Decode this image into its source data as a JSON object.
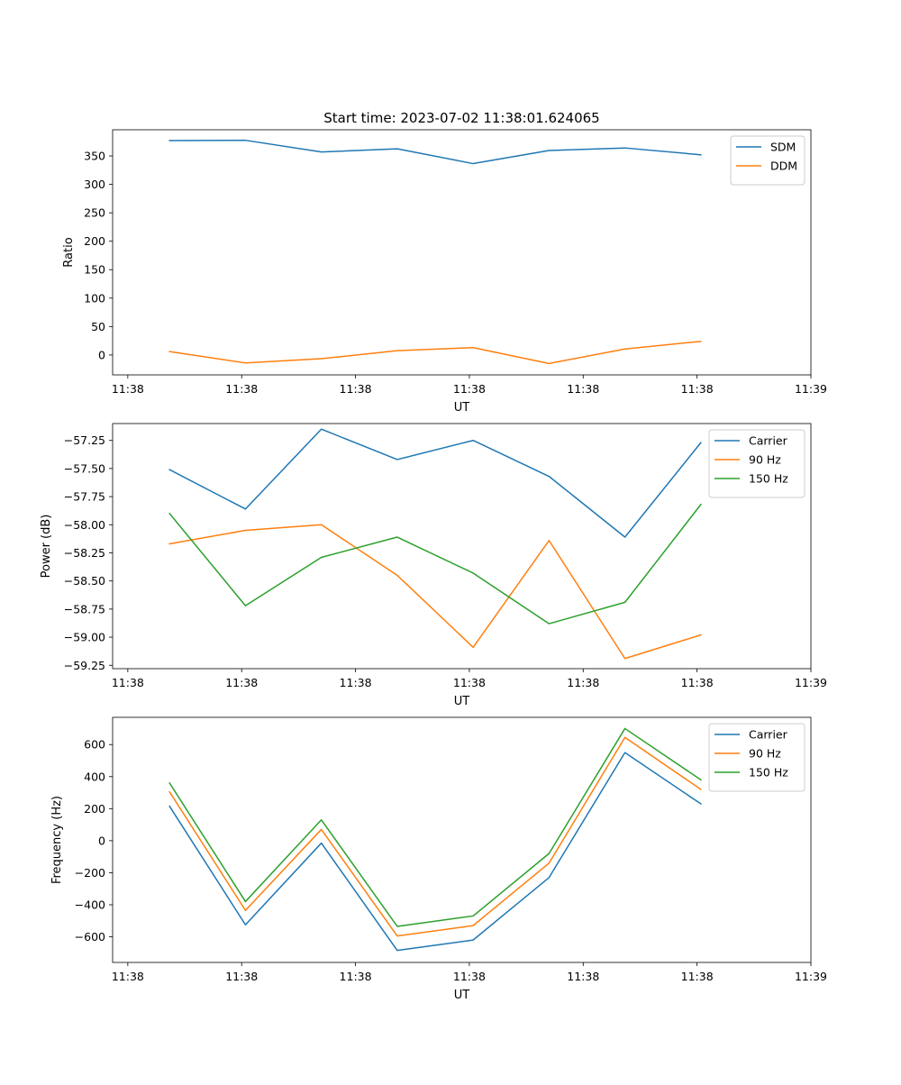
{
  "figure_title": "Start time: 2023-07-02 11:38:01.624065",
  "colors": {
    "blue": "#1f77b4",
    "orange": "#ff7f0e",
    "green": "#2ca02c"
  },
  "chart_data": [
    {
      "type": "line",
      "title": "Start time: 2023-07-02 11:38:01.624065",
      "xlabel": "UT",
      "ylabel": "Ratio",
      "legend": "top-right",
      "x": [
        1,
        2,
        3,
        4,
        5,
        6,
        7,
        8
      ],
      "xlim": [
        0.25,
        9.45
      ],
      "xticks": [
        0.45,
        1.95,
        3.45,
        4.95,
        6.45,
        7.95,
        9.45
      ],
      "xticklabels": [
        "11:38",
        "11:38",
        "11:38",
        "11:38",
        "11:38",
        "11:38",
        "11:39"
      ],
      "ylim": [
        -35,
        396
      ],
      "yticks": [
        0,
        50,
        100,
        150,
        200,
        250,
        300,
        350
      ],
      "yticklabels": [
        "0",
        "50",
        "100",
        "150",
        "200",
        "250",
        "300",
        "350"
      ],
      "series": [
        {
          "name": "SDM",
          "color": "#1f77b4",
          "values": [
            377,
            377.5,
            357,
            362.5,
            336.5,
            359.5,
            364,
            352
          ]
        },
        {
          "name": "DDM",
          "color": "#ff7f0e",
          "values": [
            6,
            -14,
            -6.5,
            7.5,
            13,
            -15,
            10.5,
            24
          ]
        }
      ]
    },
    {
      "type": "line",
      "title": "",
      "xlabel": "UT",
      "ylabel": "Power (dB)",
      "legend": "top-right",
      "x": [
        1,
        2,
        3,
        4,
        5,
        6,
        7,
        8
      ],
      "xlim": [
        0.25,
        9.45
      ],
      "xticks": [
        0.45,
        1.95,
        3.45,
        4.95,
        6.45,
        7.95,
        9.45
      ],
      "xticklabels": [
        "11:38",
        "11:38",
        "11:38",
        "11:38",
        "11:38",
        "11:38",
        "11:39"
      ],
      "ylim": [
        -59.28,
        -57.1
      ],
      "yticks": [
        -59.25,
        -59.0,
        -58.75,
        -58.5,
        -58.25,
        -58.0,
        -57.75,
        -57.5,
        -57.25
      ],
      "yticklabels": [
        "−59.25",
        "−59.00",
        "−58.75",
        "−58.50",
        "−58.25",
        "−58.00",
        "−57.75",
        "−57.50",
        "−57.25"
      ],
      "series": [
        {
          "name": "Carrier",
          "color": "#1f77b4",
          "values": [
            -57.51,
            -57.86,
            -57.15,
            -57.42,
            -57.25,
            -57.57,
            -58.11,
            -57.27
          ]
        },
        {
          "name": "90 Hz",
          "color": "#ff7f0e",
          "values": [
            -58.17,
            -58.05,
            -58.0,
            -58.45,
            -59.09,
            -58.14,
            -59.19,
            -58.98
          ]
        },
        {
          "name": "150 Hz",
          "color": "#2ca02c",
          "values": [
            -57.9,
            -58.72,
            -58.29,
            -58.11,
            -58.43,
            -58.88,
            -58.69,
            -57.82
          ]
        }
      ]
    },
    {
      "type": "line",
      "title": "",
      "xlabel": "UT",
      "ylabel": "Frequency (Hz)",
      "legend": "top-right",
      "x": [
        1,
        2,
        3,
        4,
        5,
        6,
        7,
        8
      ],
      "xlim": [
        0.25,
        9.45
      ],
      "xticks": [
        0.45,
        1.95,
        3.45,
        4.95,
        6.45,
        7.95,
        9.45
      ],
      "xticklabels": [
        "11:38",
        "11:38",
        "11:38",
        "11:38",
        "11:38",
        "11:38",
        "11:39"
      ],
      "ylim": [
        -760,
        770
      ],
      "yticks": [
        -600,
        -400,
        -200,
        0,
        200,
        400,
        600
      ],
      "yticklabels": [
        "−600",
        "−400",
        "−200",
        "0",
        "200",
        "400",
        "600"
      ],
      "series": [
        {
          "name": "Carrier",
          "color": "#1f77b4",
          "values": [
            215,
            -525,
            -15,
            -685,
            -620,
            -230,
            550,
            230
          ]
        },
        {
          "name": "90 Hz",
          "color": "#ff7f0e",
          "values": [
            305,
            -435,
            70,
            -595,
            -530,
            -140,
            645,
            320
          ]
        },
        {
          "name": "150 Hz",
          "color": "#2ca02c",
          "values": [
            360,
            -380,
            130,
            -535,
            -470,
            -80,
            700,
            380
          ]
        }
      ]
    }
  ]
}
